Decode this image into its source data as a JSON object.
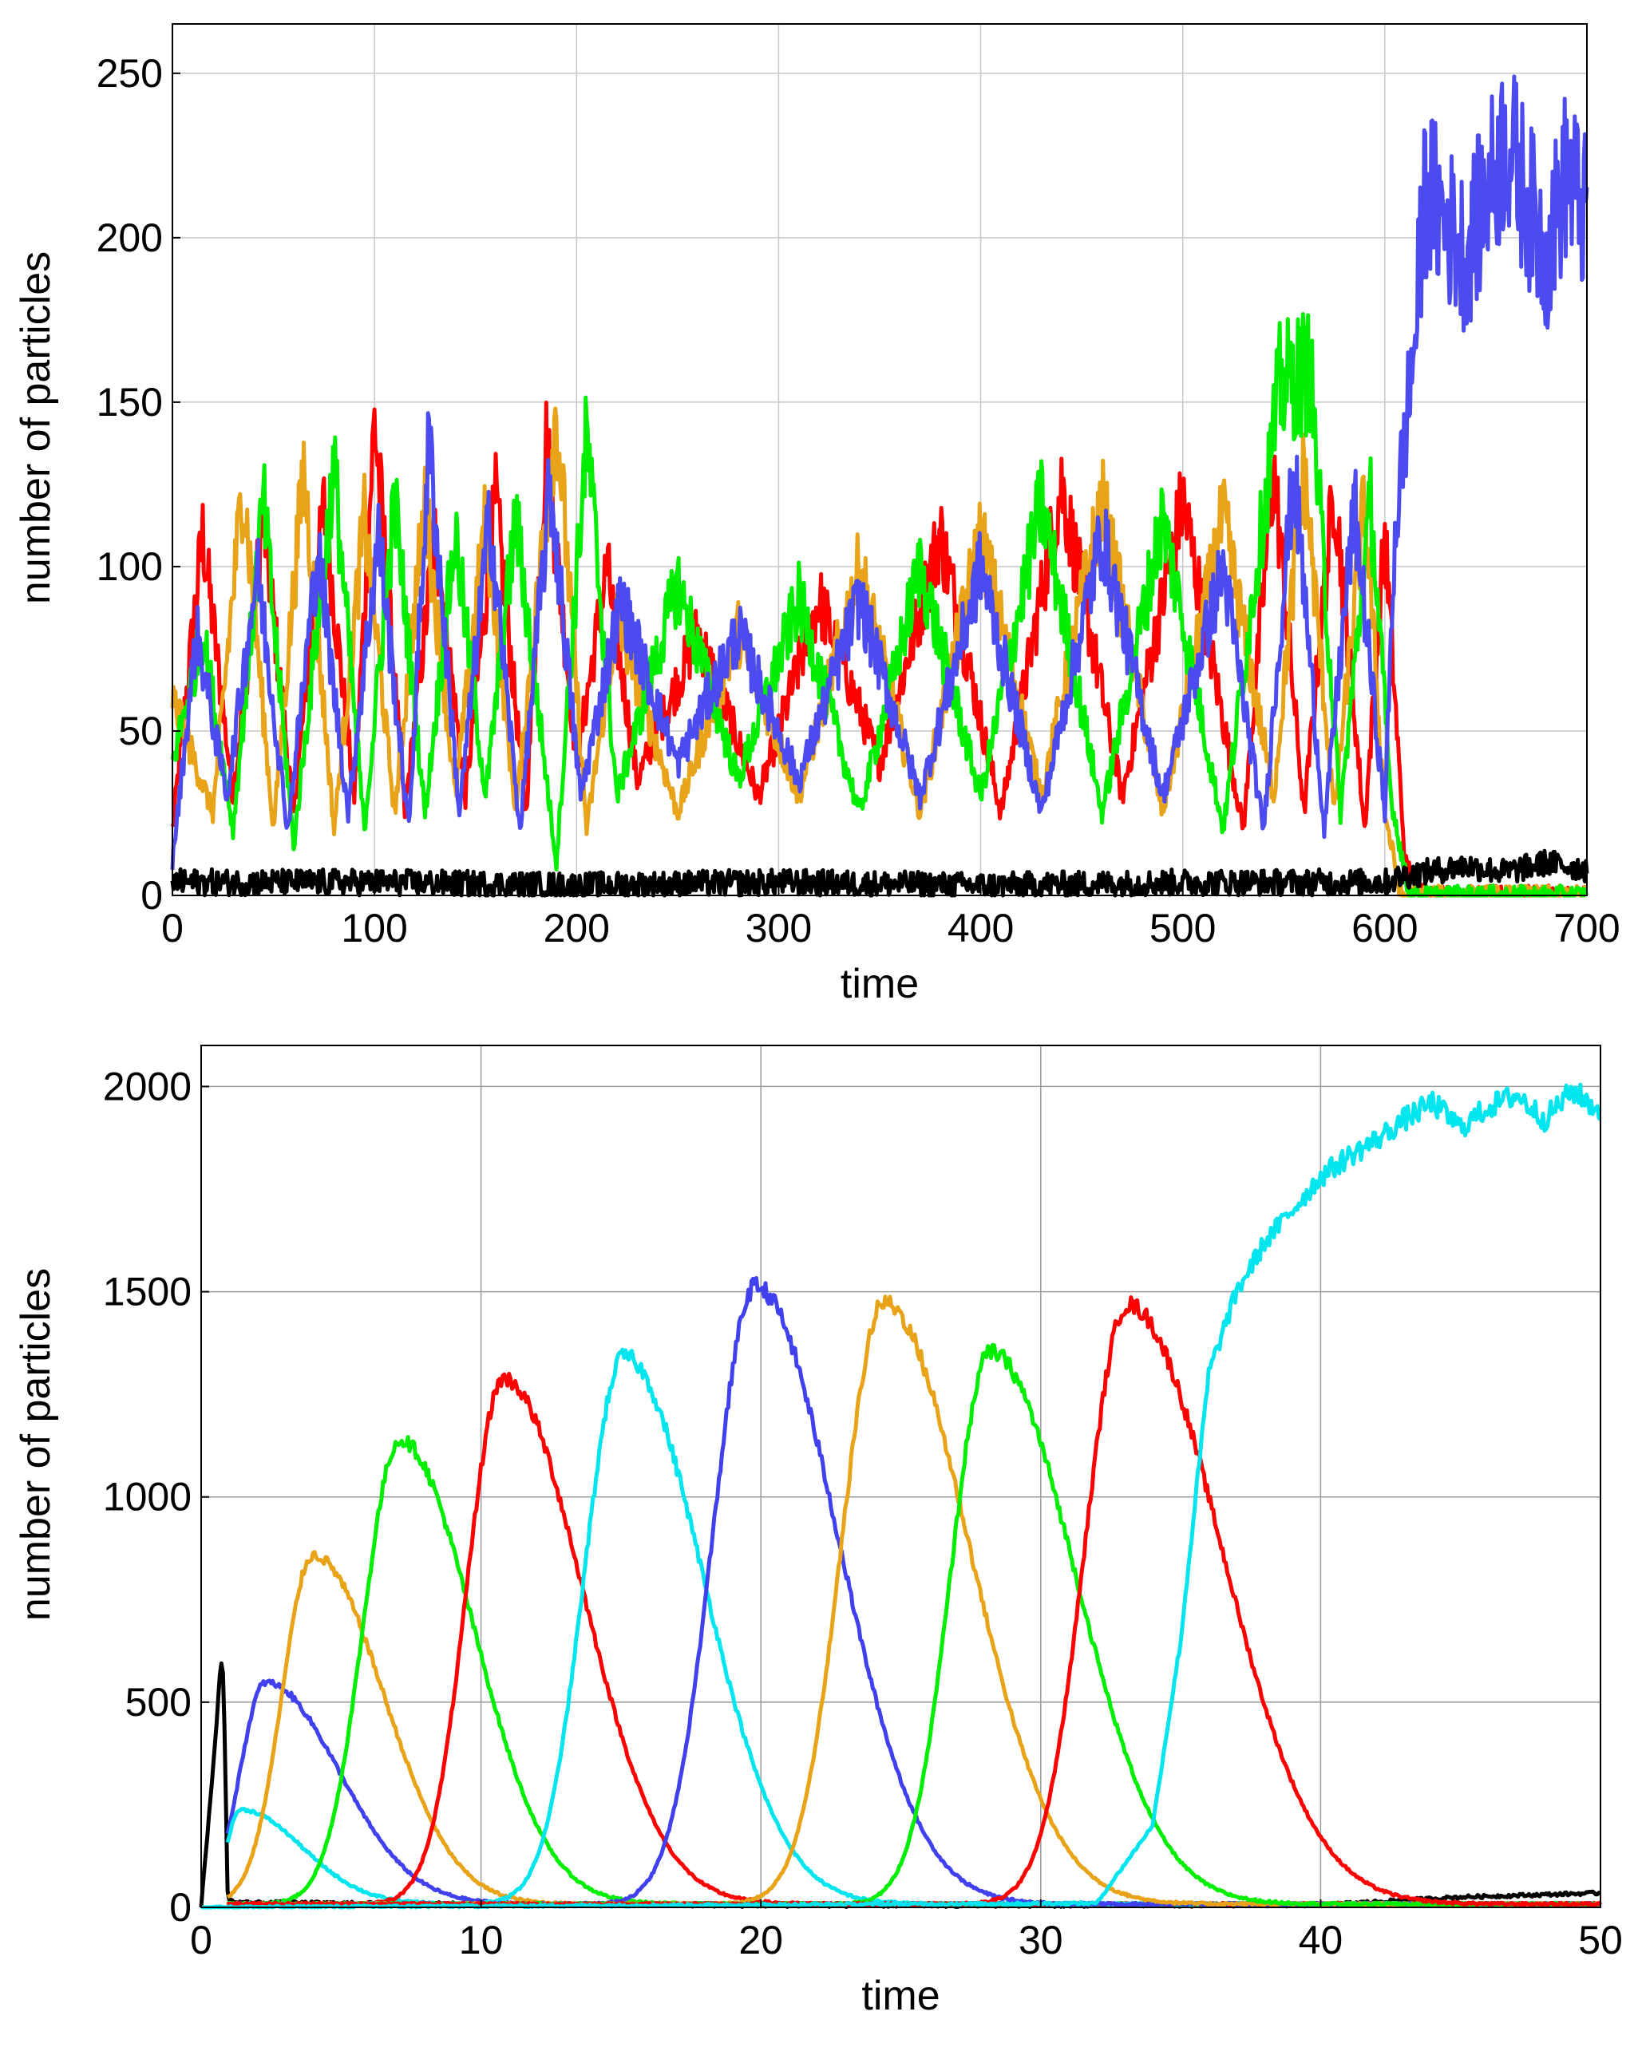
{
  "chart_data": [
    {
      "type": "line",
      "title": "",
      "xlabel": "time",
      "ylabel": "number of particles",
      "xlim": [
        0,
        700
      ],
      "ylim": [
        0,
        265
      ],
      "xticks": [
        0,
        100,
        200,
        300,
        400,
        500,
        600,
        700
      ],
      "yticks": [
        0,
        50,
        100,
        150,
        200,
        250
      ],
      "grid": true,
      "legend": "none",
      "series": [
        {
          "color": "#ff0000",
          "x": [
            0,
            15,
            30,
            45,
            60,
            75,
            90,
            100,
            115,
            130,
            145,
            160,
            175,
            185,
            200,
            215,
            230,
            260,
            290,
            320,
            350,
            380,
            410,
            440,
            470,
            500,
            530,
            545,
            560,
            575,
            590,
            600,
            610,
            620,
            700
          ],
          "y": [
            20,
            110,
            30,
            115,
            25,
            118,
            30,
            145,
            25,
            110,
            30,
            120,
            25,
            138,
            40,
            100,
            35,
            80,
            30,
            90,
            40,
            110,
            25,
            125,
            30,
            120,
            20,
            130,
            25,
            125,
            20,
            110,
            10,
            0,
            0
          ]
        },
        {
          "color": "#e8a318",
          "x": [
            0,
            20,
            35,
            50,
            65,
            80,
            95,
            110,
            125,
            140,
            155,
            170,
            190,
            205,
            220,
            250,
            280,
            310,
            340,
            370,
            400,
            430,
            460,
            490,
            520,
            545,
            560,
            575,
            590,
            600,
            608,
            700
          ],
          "y": [
            60,
            25,
            126,
            20,
            130,
            20,
            115,
            25,
            120,
            30,
            115,
            25,
            148,
            20,
            85,
            25,
            80,
            30,
            100,
            25,
            110,
            30,
            120,
            25,
            115,
            30,
            130,
            25,
            120,
            25,
            0,
            0
          ]
        },
        {
          "color": "#00ee00",
          "x": [
            0,
            15,
            30,
            45,
            60,
            80,
            95,
            110,
            125,
            140,
            155,
            170,
            190,
            205,
            220,
            250,
            280,
            310,
            340,
            370,
            400,
            430,
            460,
            490,
            520,
            548,
            563,
            578,
            593,
            603,
            612,
            700
          ],
          "y": [
            40,
            80,
            20,
            120,
            15,
            130,
            20,
            120,
            25,
            110,
            30,
            115,
            10,
            140,
            30,
            95,
            35,
            90,
            25,
            100,
            30,
            120,
            25,
            115,
            20,
            155,
            160,
            25,
            120,
            30,
            0,
            0
          ]
        },
        {
          "color": "#4b4bf0",
          "x": [
            0,
            12,
            27,
            42,
            57,
            72,
            87,
            102,
            117,
            127,
            142,
            157,
            172,
            187,
            202,
            222,
            250,
            280,
            310,
            340,
            370,
            400,
            430,
            460,
            490,
            520,
            540,
            555,
            570,
            585,
            600,
            605,
            615,
            620,
            640,
            660,
            680,
            690,
            700
          ],
          "y": [
            10,
            80,
            30,
            100,
            20,
            105,
            25,
            110,
            20,
            138,
            25,
            115,
            20,
            125,
            30,
            90,
            40,
            80,
            35,
            90,
            30,
            100,
            25,
            110,
            30,
            100,
            20,
            130,
            20,
            118,
            25,
            110,
            170,
            215,
            195,
            230,
            195,
            220,
            205
          ]
        },
        {
          "color": "#000000",
          "x": [
            0,
            100,
            200,
            300,
            400,
            500,
            600,
            610,
            640,
            660,
            680,
            700
          ],
          "y": [
            4,
            4,
            3,
            4,
            3,
            4,
            4,
            6,
            9,
            7,
            10,
            8
          ]
        }
      ]
    },
    {
      "type": "line",
      "title": "",
      "xlabel": "time",
      "ylabel": "number of particles",
      "xlim": [
        0,
        50
      ],
      "ylim": [
        0,
        2100
      ],
      "xticks": [
        0,
        10,
        20,
        30,
        40,
        50
      ],
      "yticks": [
        0,
        500,
        1000,
        1500,
        2000
      ],
      "grid": true,
      "legend": "none",
      "series": [
        {
          "color": "#000000",
          "peak_t": 0,
          "x": [
            0,
            0.5,
            0.7,
            0.8,
            0.95,
            1.2,
            5,
            10,
            20,
            30,
            40,
            45,
            50
          ],
          "y": [
            0,
            400,
            600,
            560,
            20,
            12,
            10,
            8,
            5,
            5,
            6,
            25,
            35
          ]
        },
        {
          "color": "#4040ee",
          "peak_t": 2.3,
          "amp": 540,
          "rise": 0.9,
          "fall": 2.6,
          "base_from": 0.9
        },
        {
          "color": "#00e5ee",
          "peak_t": 1.4,
          "amp": 230,
          "rise": 0.5,
          "fall": 2.2,
          "base_from": 0.9
        },
        {
          "color": "#e8a318",
          "peak_t": 4.0,
          "amp": 850,
          "rise": 1.1,
          "fall": 2.5,
          "base_from": 0.9
        },
        {
          "color": "#00ee00",
          "peak_t": 7.1,
          "amp": 1130,
          "rise": 1.3,
          "fall": 2.6,
          "base_from": 0.9
        },
        {
          "color": "#ff0000",
          "peak_t": 10.8,
          "amp": 1280,
          "rise": 1.3,
          "fall": 2.8,
          "base_from": 0.9
        },
        {
          "color": "#00e5ee",
          "peak_t": 15.1,
          "amp": 1335,
          "rise": 1.4,
          "fall": 2.8,
          "base_from": 0.9
        },
        {
          "color": "#4040ee",
          "peak_t": 19.8,
          "amp": 1505,
          "rise": 1.5,
          "fall": 2.9,
          "base_from": 0.9
        },
        {
          "color": "#e8a318",
          "peak_t": 24.4,
          "amp": 1465,
          "rise": 1.5,
          "fall": 3.0,
          "base_from": 0.9
        },
        {
          "color": "#00ee00",
          "peak_t": 28.2,
          "amp": 1345,
          "rise": 1.4,
          "fall": 3.0,
          "base_from": 0.9
        },
        {
          "color": "#ff0000",
          "peak_t": 33.1,
          "amp": 1460,
          "rise": 1.5,
          "fall": 3.3,
          "base_from": 0.9
        },
        {
          "color": "#00e5ee",
          "x": [
            0,
            32,
            34,
            35,
            36,
            37,
            38,
            39,
            40,
            41,
            42,
            43,
            44,
            45,
            46,
            47,
            48,
            49,
            50
          ],
          "y": [
            0,
            10,
            200,
            650,
            1300,
            1500,
            1620,
            1700,
            1780,
            1830,
            1870,
            1920,
            1960,
            1900,
            1950,
            1980,
            1920,
            1990,
            1940
          ]
        }
      ]
    }
  ]
}
